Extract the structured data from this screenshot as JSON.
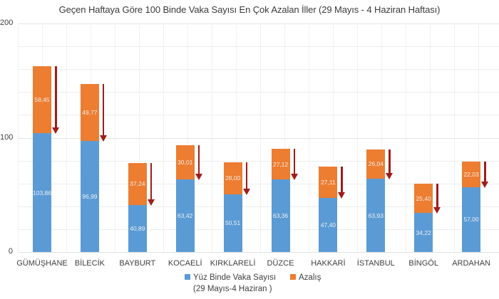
{
  "chart_data": {
    "type": "bar",
    "stacked": true,
    "title": "Geçen Haftaya Göre 100 Binde Vaka Sayısı En Çok Azalan İller (29 Mayıs - 4 Haziran Haftası)",
    "xlabel": "",
    "ylabel": "",
    "ylim": [
      0,
      200
    ],
    "yticks": [
      "0",
      "100",
      "200"
    ],
    "grid": true,
    "legend_position": "bottom",
    "categories": [
      "GÜMÜŞHANE",
      "BİLECİK",
      "BAYBURT",
      "KOCAELİ",
      "KIRKLARELİ",
      "DÜZCE",
      "HAKKARİ",
      "İSTANBUL",
      "BİNGÖL",
      "ARDAHAN"
    ],
    "series": [
      {
        "name": "Yüz Binde Vaka Sayısı (29 Mayıs-4 Haziran )",
        "color": "#5b9bd5",
        "values": [
          103.86,
          96.99,
          40.89,
          63.42,
          50.51,
          63.36,
          47.4,
          63.93,
          34.22,
          57.0
        ],
        "labels": [
          "103,86",
          "96,99",
          "40,89",
          "63,42",
          "50,51",
          "63,36",
          "47,40",
          "63,93",
          "34,22",
          "57,00"
        ]
      },
      {
        "name": "Azalış",
        "color": "#ed7d31",
        "values": [
          58.45,
          49.77,
          37.24,
          30.01,
          28.0,
          27.12,
          27.11,
          26.04,
          25.4,
          22.03
        ],
        "labels": [
          "58,45",
          "49,77",
          "37,24",
          "30,01",
          "28,00",
          "27,12",
          "27,11",
          "26,04",
          "25,40",
          "22,03"
        ]
      }
    ],
    "annotations": "Dark red downward arrow beside each bar spanning the Azalış segment",
    "arrow_color": "#a01c1c"
  },
  "legend": {
    "blue_label_line1": "Yüz Binde Vaka Sayısı",
    "blue_label_line2": "(29 Mayıs-4 Haziran )",
    "orange_label": "Azalış"
  }
}
